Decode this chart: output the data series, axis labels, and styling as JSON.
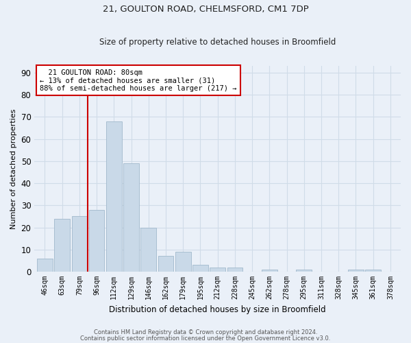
{
  "title1": "21, GOULTON ROAD, CHELMSFORD, CM1 7DP",
  "title2": "Size of property relative to detached houses in Broomfield",
  "xlabel": "Distribution of detached houses by size in Broomfield",
  "ylabel": "Number of detached properties",
  "categories": [
    "46sqm",
    "63sqm",
    "79sqm",
    "96sqm",
    "112sqm",
    "129sqm",
    "146sqm",
    "162sqm",
    "179sqm",
    "195sqm",
    "212sqm",
    "228sqm",
    "245sqm",
    "262sqm",
    "278sqm",
    "295sqm",
    "311sqm",
    "328sqm",
    "345sqm",
    "361sqm",
    "378sqm"
  ],
  "values": [
    6,
    24,
    25,
    28,
    68,
    49,
    20,
    7,
    9,
    3,
    2,
    2,
    0,
    1,
    0,
    1,
    0,
    0,
    1,
    1,
    0
  ],
  "bar_color": "#c9d9e8",
  "bar_edge_color": "#a0b8cc",
  "grid_color": "#d0dce8",
  "background_color": "#eaf0f8",
  "vline_x_index": 2,
  "vline_color": "#cc0000",
  "annotation_text": "  21 GOULTON ROAD: 80sqm\n← 13% of detached houses are smaller (31)\n88% of semi-detached houses are larger (217) →",
  "annotation_box_color": "#ffffff",
  "annotation_box_edge": "#cc0000",
  "footer1": "Contains HM Land Registry data © Crown copyright and database right 2024.",
  "footer2": "Contains public sector information licensed under the Open Government Licence v3.0.",
  "ylim": [
    0,
    93
  ],
  "yticks": [
    0,
    10,
    20,
    30,
    40,
    50,
    60,
    70,
    80,
    90
  ]
}
